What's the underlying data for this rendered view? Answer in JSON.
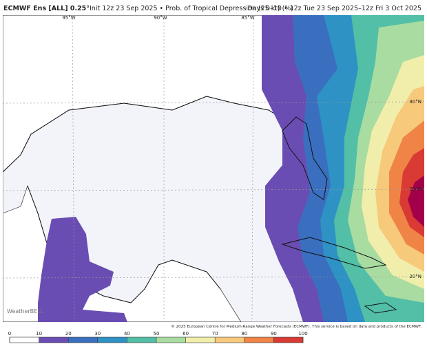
{
  "header": {
    "title": "ECMWF Ens [ALL] 0.25°",
    "subtitle": "Init 12z 23 Sep 2025 • Prob. of Tropical Depression (25 kt) (%)",
    "valid": "Days 0–10 • 12z Tue 23 Sep 2025–12z Fri 3 Oct 2025"
  },
  "map": {
    "longitude_labels": [
      "95°W",
      "90°W",
      "85°W"
    ],
    "latitude_labels": [
      "30°N",
      "25°N",
      "20°N"
    ],
    "watermark": "WeatherBELL",
    "credit": "© 2025 European Centre for Medium-Range Weather Forecasts (ECMWF). This service is based on data and products of the ECMWF."
  },
  "colorbar": {
    "ticks": [
      0,
      10,
      20,
      30,
      40,
      50,
      60,
      70,
      80,
      90,
      100
    ],
    "colors": [
      "#ffffff",
      "#6a4db2",
      "#3a6fbf",
      "#2e92c4",
      "#52bfa6",
      "#a9dca1",
      "#f1eeab",
      "#f7c97a",
      "#ef8446",
      "#d93a34",
      "#a3004a"
    ]
  }
}
